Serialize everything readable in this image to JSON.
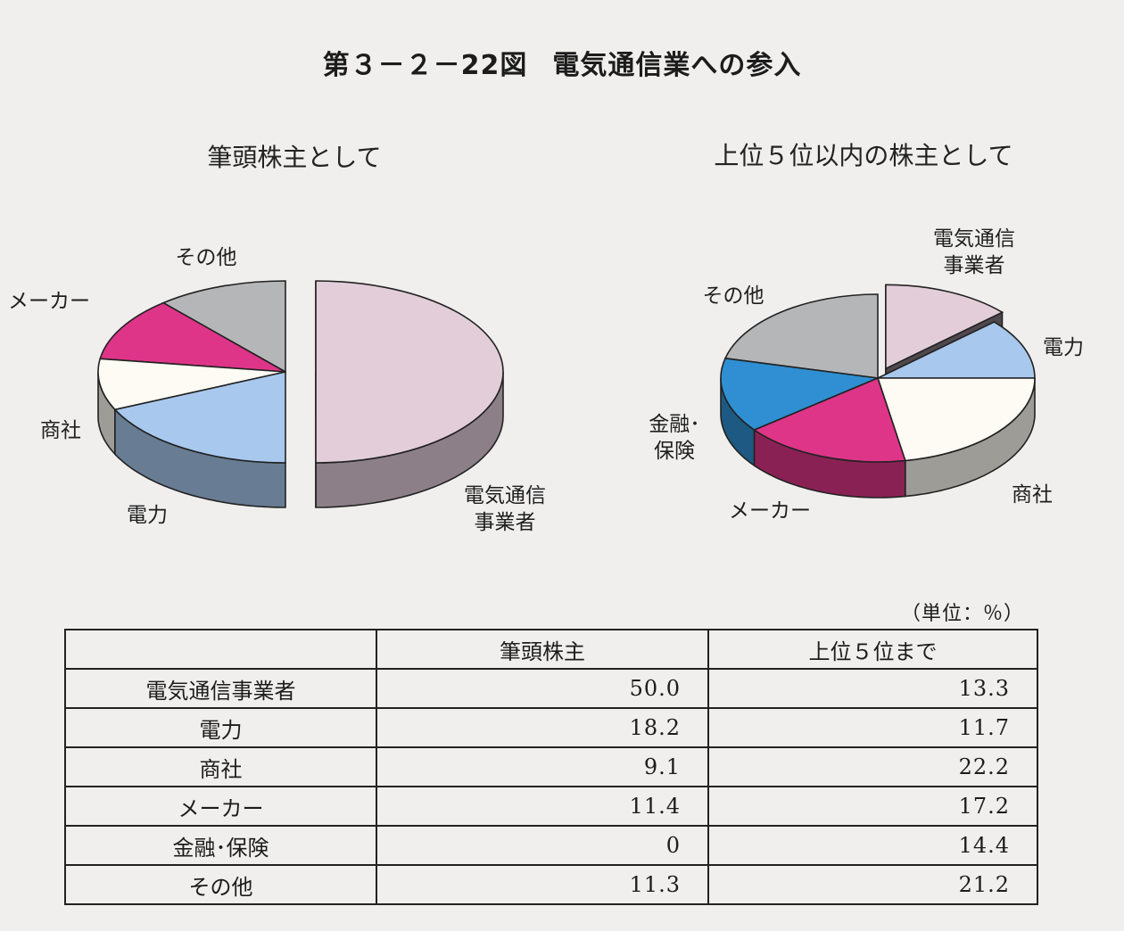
{
  "figure": {
    "number": "第３－２－22図",
    "title": "電気通信業への参入"
  },
  "table": {
    "unit": "（単位：％）",
    "headers": [
      "",
      "筆頭株主",
      "上位５位まで"
    ],
    "rows": [
      {
        "label": "電気通信事業者",
        "v1": "50.0",
        "v2": "13.3"
      },
      {
        "label": "電力",
        "v1": "18.2",
        "v2": "11.7"
      },
      {
        "label": "商社",
        "v1": "9.1",
        "v2": "22.2"
      },
      {
        "label": "メーカー",
        "v1": "11.4",
        "v2": "17.2"
      },
      {
        "label": "金融･保険",
        "v1": "0",
        "v2": "14.4"
      },
      {
        "label": "その他",
        "v1": "11.3",
        "v2": "21.2"
      }
    ]
  },
  "chart_data": [
    {
      "type": "pie",
      "title": "筆頭株主として",
      "labels": [
        "電気通信\n事業者",
        "電力",
        "商社",
        "メーカー",
        "金融･保険",
        "その他"
      ],
      "values": [
        50.0,
        18.2,
        9.1,
        11.4,
        0,
        11.3
      ],
      "colors": [
        "#e2cdd9",
        "#a8c8ee",
        "#fdfbf4",
        "#de3589",
        "#2f8fd2",
        "#b5b6b8"
      ],
      "exploded": "電気通信事業者",
      "style": "3d"
    },
    {
      "type": "pie",
      "title": "上位５位以内の株主として",
      "labels": [
        "電気通信\n事業者",
        "電力",
        "商社",
        "メーカー",
        "金融･\n保険",
        "その他"
      ],
      "values": [
        13.3,
        11.7,
        22.2,
        17.2,
        14.4,
        21.2
      ],
      "colors": [
        "#e2cdd9",
        "#a8c8ee",
        "#fdfbf4",
        "#de3589",
        "#2f8fd2",
        "#b5b6b8"
      ],
      "exploded": "電気通信事業者",
      "style": "3d"
    }
  ]
}
